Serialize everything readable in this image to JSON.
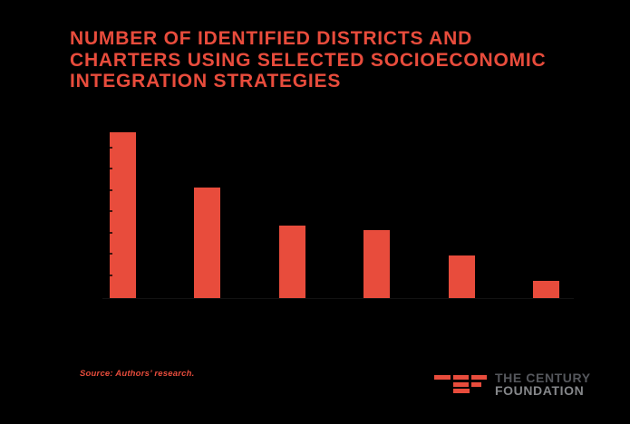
{
  "page": {
    "background_color": "#000000",
    "accent_color": "#e84c3c"
  },
  "title": {
    "line1": "NUMBER OF IDENTIFIED DISTRICTS AND",
    "line2": "CHARTERS USING SELECTED SOCIOECONOMIC",
    "line3": "INTEGRATION STRATEGIES",
    "color": "#e84c3c"
  },
  "chart_data": {
    "type": "bar",
    "title": "Number of Identified Districts and Charters Using Selected Socioeconomic Integration Strategies",
    "values": [
      39,
      26,
      17,
      16,
      10,
      4
    ],
    "categories": [
      "",
      "",
      "",
      "",
      "",
      ""
    ],
    "category_labels_visible": false,
    "xlabel": "",
    "ylabel": "",
    "ylim": [
      0,
      40
    ],
    "ytick_interval": 5,
    "yticks_visible_values": [
      5,
      10,
      15,
      20,
      25,
      30,
      35
    ],
    "grid": false,
    "legend": false,
    "bar_color": "#e84c3c",
    "tick_color": "#3c140e"
  },
  "source": {
    "text": "Source: Authors’ research."
  },
  "logo": {
    "line1": "THE CENTURY",
    "line2": "FOUNDATION",
    "line1_color": "#55575c",
    "line2_color": "#85878a",
    "mark_color": "#e84c3c"
  }
}
